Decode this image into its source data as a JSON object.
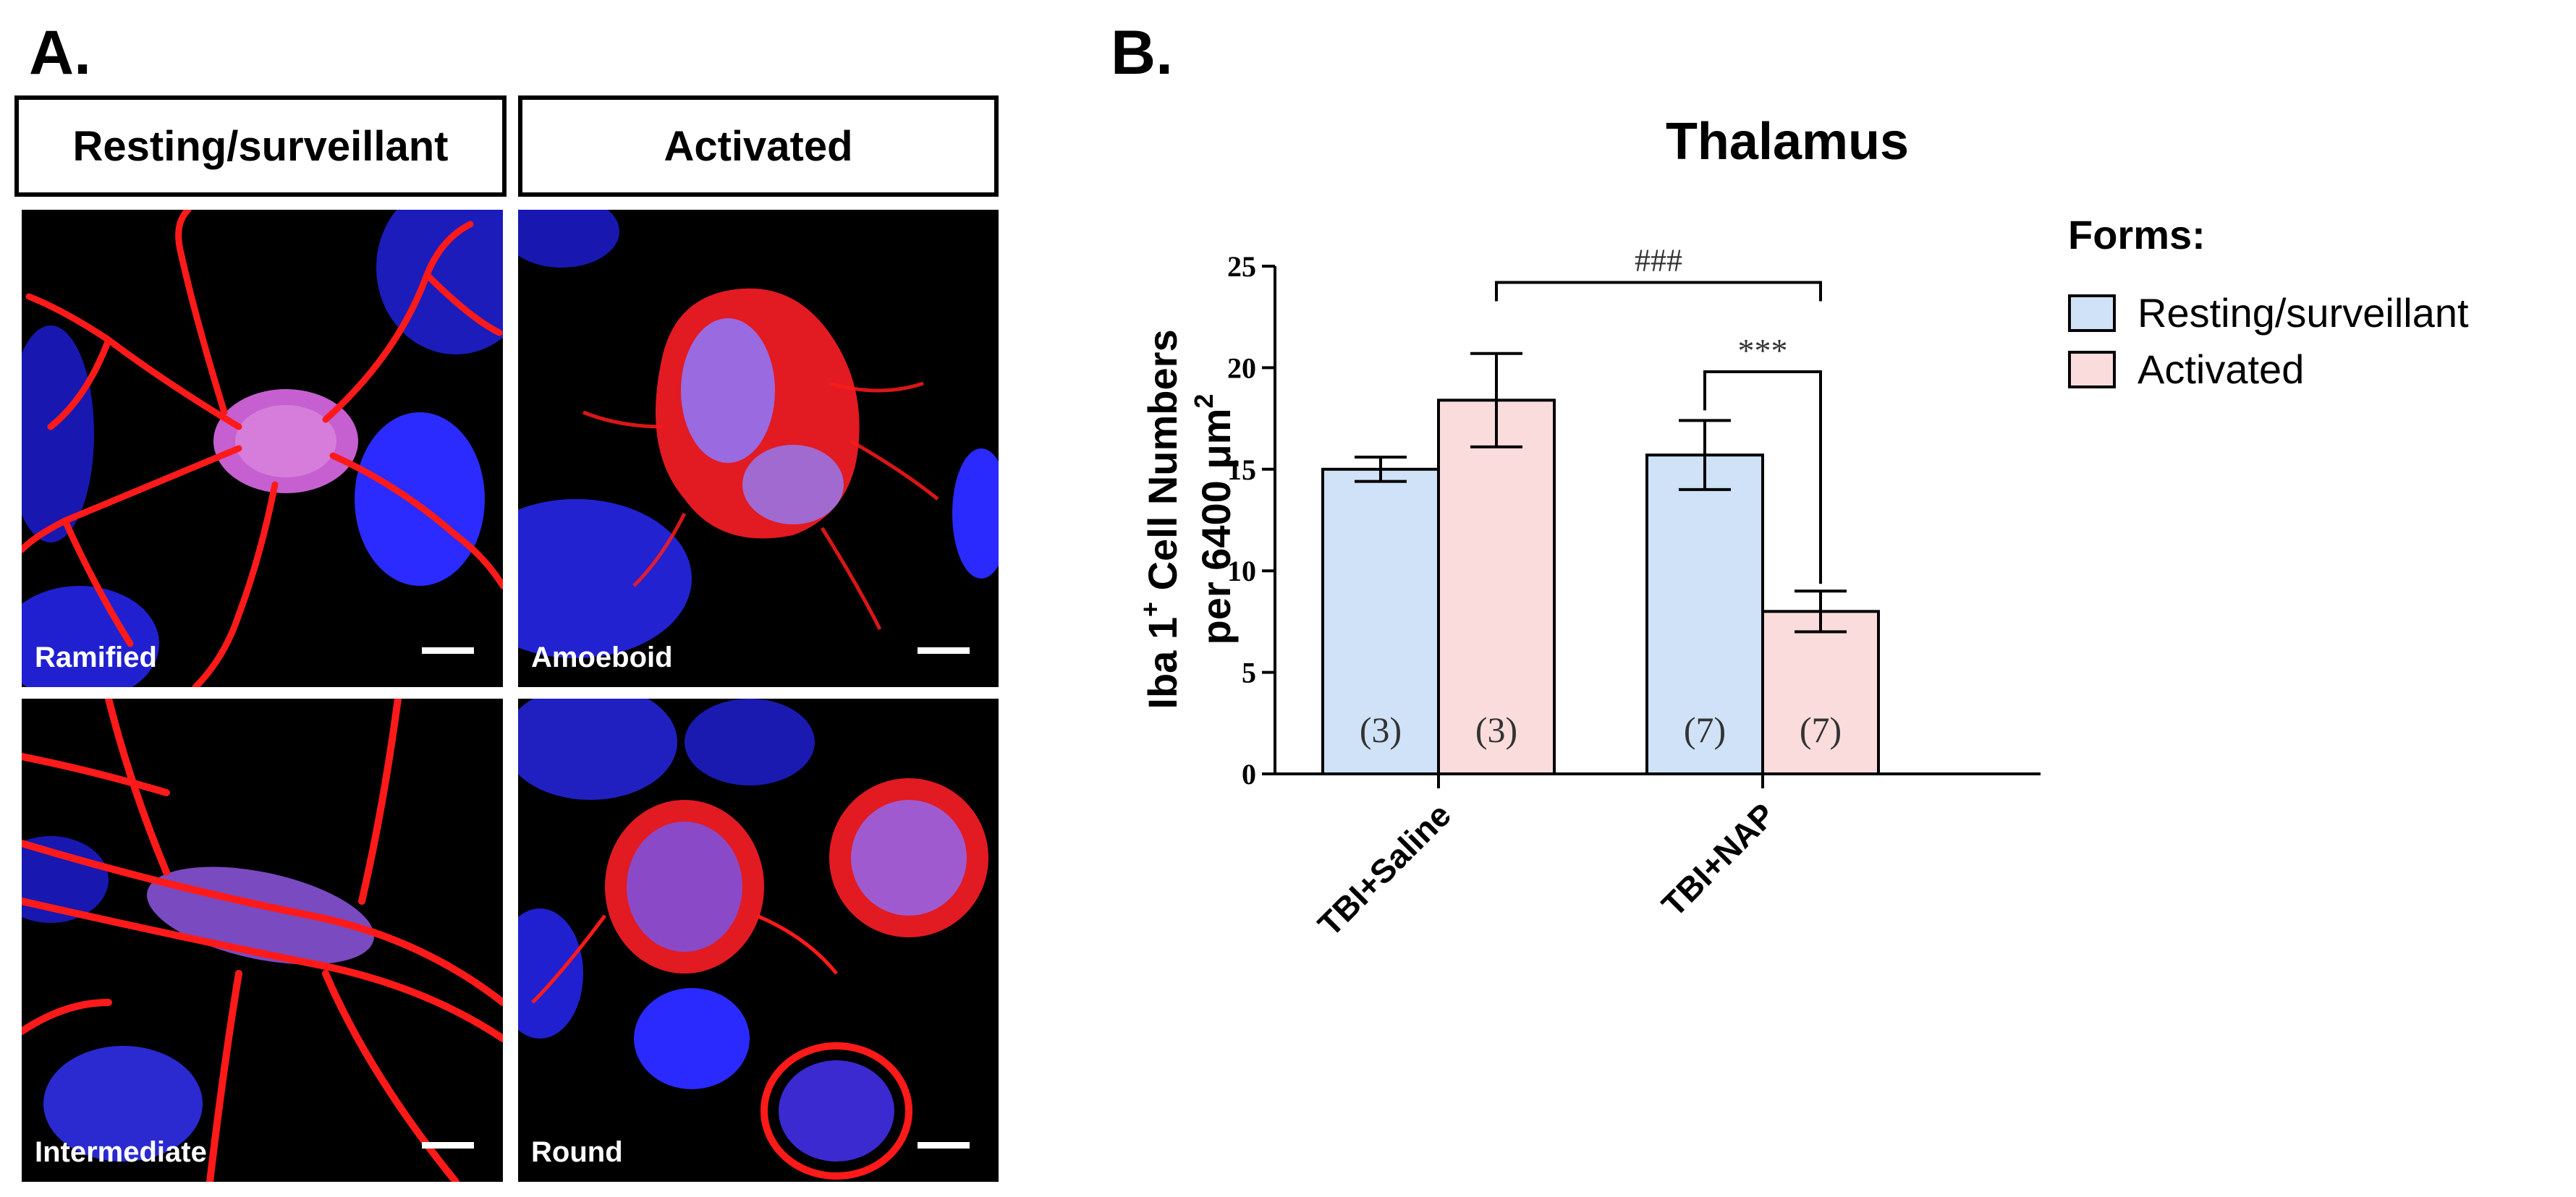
{
  "panel_a": {
    "letter": "A.",
    "headers": [
      "Resting/surveillant",
      "Activated"
    ],
    "images": {
      "ramified": "Ramified",
      "amoeboid": "Amoeboid",
      "intermediate": "Intermediate",
      "round": "Round"
    }
  },
  "panel_b": {
    "letter": "B.",
    "legend": {
      "title": "Forms:",
      "items": [
        "Resting/surveillant",
        "Activated"
      ]
    }
  },
  "colors": {
    "resting": "#cfe2f7",
    "activated": "#fbdcdc",
    "nuclei": "#1a1aff",
    "microglia": "#ff1a1a"
  },
  "chart_data": {
    "type": "bar",
    "title": "Thalamus",
    "ylabel": "Iba 1+ Cell Numbers per 6400 μm2",
    "ylabel_line1_main": "Iba 1",
    "ylabel_line1_sup": "+",
    "ylabel_line1_rest": " Cell Numbers",
    "ylabel_line2_main": "per 6400 μm",
    "ylabel_line2_sup": "2",
    "categories": [
      "TBI+Saline",
      "TBI+NAP"
    ],
    "ylim": [
      0,
      25
    ],
    "yticks": [
      0,
      5,
      10,
      15,
      20,
      25
    ],
    "series": [
      {
        "name": "Resting/surveillant",
        "values": [
          15.0,
          15.7
        ],
        "errors": [
          0.6,
          1.7
        ],
        "n_labels": [
          "(3)",
          "(7)"
        ]
      },
      {
        "name": "Activated",
        "values": [
          18.4,
          8.0
        ],
        "errors": [
          2.3,
          1.0
        ],
        "n_labels": [
          "(3)",
          "(7)"
        ]
      }
    ],
    "annotations": [
      "###",
      "***"
    ]
  }
}
